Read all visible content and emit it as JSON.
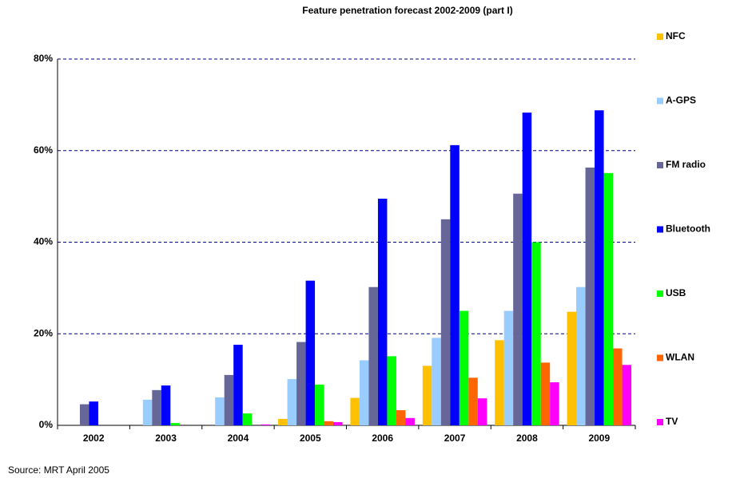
{
  "chart_data": {
    "type": "bar",
    "title": "Feature penetration forecast 2002-2009 (part I)",
    "source": "Source: MRT April 2005",
    "categories": [
      "2002",
      "2003",
      "2004",
      "2005",
      "2006",
      "2007",
      "2008",
      "2009"
    ],
    "series": [
      {
        "name": "NFC",
        "color": "#ffc000",
        "values": [
          0,
          0,
          0,
          1.4,
          6,
          13,
          18.6,
          24.8
        ]
      },
      {
        "name": "A-GPS",
        "color": "#99ccff",
        "values": [
          0,
          5.6,
          6.1,
          10.1,
          14.2,
          19.1,
          25,
          30.2
        ]
      },
      {
        "name": "FM radio",
        "color": "#666699",
        "values": [
          4.6,
          7.7,
          11,
          18.2,
          30.2,
          45,
          50.6,
          56.3
        ]
      },
      {
        "name": "Bluetooth",
        "color": "#0000ff",
        "values": [
          5.2,
          8.7,
          17.6,
          31.6,
          49.5,
          61.2,
          68.3,
          68.8
        ]
      },
      {
        "name": "USB",
        "color": "#00ff00",
        "values": [
          0,
          0.5,
          2.6,
          8.9,
          15.1,
          25,
          40,
          55.1
        ]
      },
      {
        "name": "WLAN",
        "color": "#ff6600",
        "values": [
          0,
          0,
          0,
          0.9,
          3.3,
          10.4,
          13.7,
          16.8
        ]
      },
      {
        "name": "TV",
        "color": "#ff00ff",
        "values": [
          0,
          0,
          0.2,
          0.7,
          1.6,
          5.9,
          9.4,
          13.2
        ]
      }
    ],
    "ylim": [
      0,
      80
    ],
    "yticks": [
      {
        "value": 0,
        "label": "0%"
      },
      {
        "value": 20,
        "label": "20%"
      },
      {
        "value": 40,
        "label": "40%"
      },
      {
        "value": 60,
        "label": "60%"
      },
      {
        "value": 80,
        "label": "80%"
      }
    ],
    "grid": true,
    "legend": "right"
  }
}
